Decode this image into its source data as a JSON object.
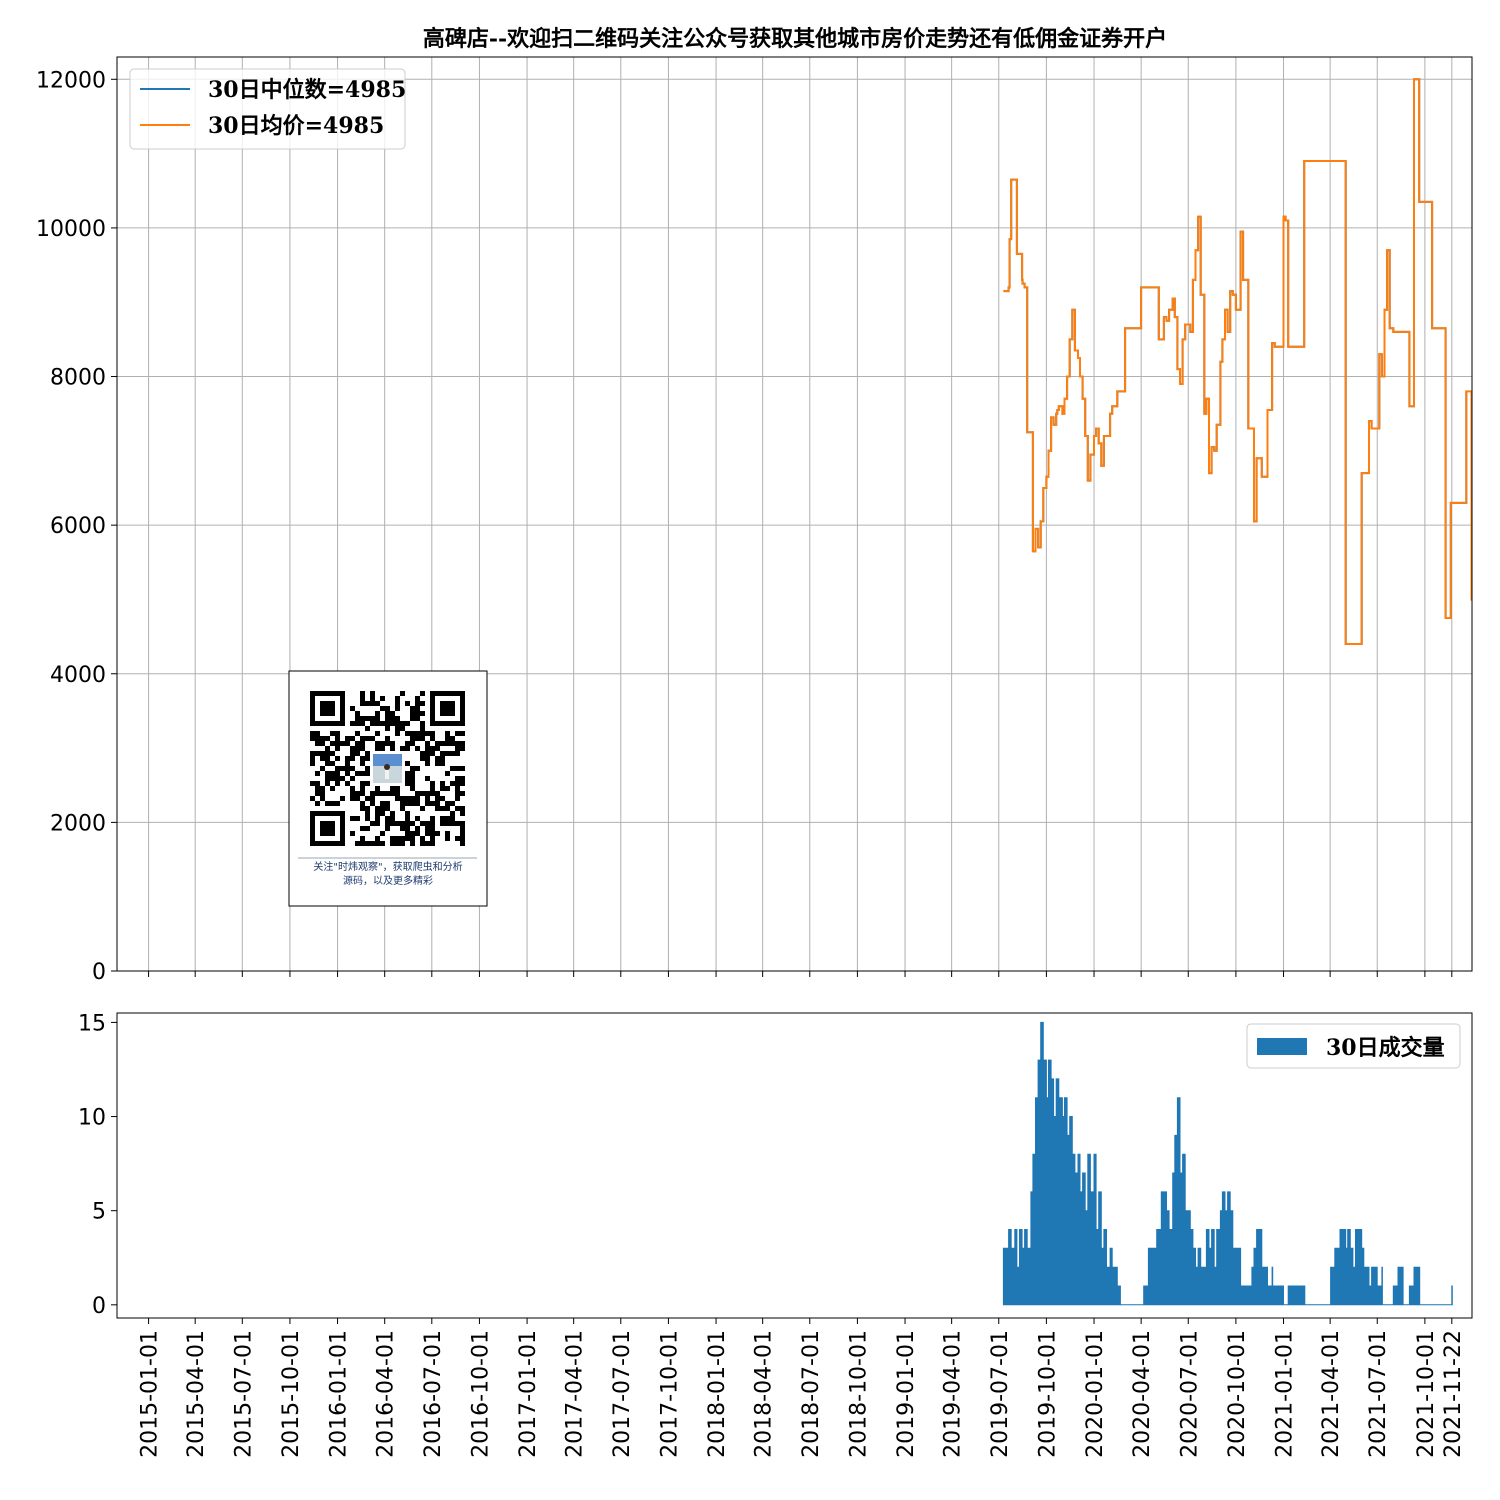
{
  "chart_data": [
    {
      "type": "line",
      "title": "高碑店--欢迎扫二维码关注公众号获取其他城市房价走势还有低佣金证券开户",
      "ylim": [
        0,
        12300
      ],
      "yticks": [
        0,
        2000,
        4000,
        6000,
        8000,
        10000,
        12000
      ],
      "x_range": [
        "2014-11-01",
        "2021-12-31"
      ],
      "grid": true,
      "legend_position": "top-left",
      "series": [
        {
          "name": "30日中位数=4985",
          "color": "#1f77b4",
          "x": [
            "2019-07-10",
            "2019-07-20",
            "2019-07-22",
            "2019-07-25",
            "2019-08-05",
            "2019-08-10",
            "2019-08-15",
            "2019-08-16",
            "2019-08-20",
            "2019-08-25",
            "2019-09-01",
            "2019-09-05",
            "2019-09-10",
            "2019-09-15",
            "2019-09-20",
            "2019-09-25",
            "2019-10-01",
            "2019-10-05",
            "2019-10-10",
            "2019-10-15",
            "2019-10-20",
            "2019-10-22",
            "2019-10-25",
            "2019-11-01",
            "2019-11-05",
            "2019-11-10",
            "2019-11-15",
            "2019-11-20",
            "2019-11-25",
            "2019-12-01",
            "2019-12-05",
            "2019-12-10",
            "2019-12-15",
            "2019-12-20",
            "2019-12-25",
            "2020-01-01",
            "2020-01-05",
            "2020-01-10",
            "2020-01-15",
            "2020-01-20",
            "2020-02-01",
            "2020-02-05",
            "2020-02-15",
            "2020-03-01",
            "2020-04-01",
            "2020-04-15",
            "2020-05-01",
            "2020-05-05",
            "2020-05-10",
            "2020-05-15",
            "2020-05-20",
            "2020-05-25",
            "2020-06-01",
            "2020-06-05",
            "2020-06-10",
            "2020-06-15",
            "2020-06-20",
            "2020-06-25",
            "2020-07-01",
            "2020-07-05",
            "2020-07-10",
            "2020-07-15",
            "2020-07-20",
            "2020-07-25",
            "2020-08-01",
            "2020-08-05",
            "2020-08-10",
            "2020-08-15",
            "2020-08-20",
            "2020-08-25",
            "2020-09-01",
            "2020-09-05",
            "2020-09-10",
            "2020-09-15",
            "2020-09-20",
            "2020-09-25",
            "2020-10-01",
            "2020-10-05",
            "2020-10-10",
            "2020-10-15",
            "2020-10-20",
            "2020-10-25",
            "2020-11-01",
            "2020-11-05",
            "2020-11-10",
            "2020-11-15",
            "2020-11-20",
            "2020-12-01",
            "2020-12-10",
            "2020-12-15",
            "2020-12-20",
            "2021-01-01",
            "2021-01-05",
            "2021-01-10",
            "2021-01-15",
            "2021-01-20",
            "2021-02-01",
            "2021-02-10",
            "2021-02-15",
            "2021-03-01",
            "2021-03-10",
            "2021-03-15",
            "2021-04-01",
            "2021-05-01",
            "2021-06-01",
            "2021-06-10",
            "2021-06-15",
            "2021-06-20",
            "2021-07-01",
            "2021-07-05",
            "2021-07-10",
            "2021-07-15",
            "2021-07-20",
            "2021-07-25",
            "2021-08-01",
            "2021-08-10",
            "2021-08-20",
            "2021-09-01",
            "2021-09-05",
            "2021-09-10",
            "2021-09-20",
            "2021-10-01",
            "2021-10-10",
            "2021-10-15",
            "2021-10-20",
            "2021-11-01",
            "2021-11-10",
            "2021-11-20",
            "2021-12-01",
            "2021-12-20"
          ],
          "y": [
            9150,
            9200,
            9850,
            10650,
            9650,
            9650,
            9300,
            9250,
            9200,
            7250,
            7250,
            5650,
            5950,
            5700,
            6050,
            6500,
            6650,
            7000,
            7450,
            7350,
            7500,
            7550,
            7600,
            7500,
            7700,
            8000,
            8500,
            8900,
            8350,
            8250,
            8000,
            7700,
            7200,
            6600,
            6950,
            7200,
            7300,
            7100,
            6800,
            7200,
            7500,
            7600,
            7800,
            8650,
            9200,
            9200,
            9200,
            8500,
            8500,
            8800,
            8750,
            8900,
            9050,
            8800,
            8100,
            7900,
            8500,
            8700,
            8700,
            8600,
            9300,
            9700,
            10150,
            9100,
            7500,
            7700,
            6700,
            7050,
            7000,
            7350,
            8200,
            8500,
            8900,
            8600,
            9150,
            9100,
            8900,
            8900,
            9950,
            9300,
            9300,
            7300,
            7300,
            6050,
            6900,
            6900,
            6650,
            7550,
            8450,
            8400,
            8400,
            10150,
            10100,
            8400,
            8400,
            8400,
            8400,
            10900,
            10900,
            10900,
            10900,
            10900,
            10900,
            4400,
            6700,
            6700,
            7400,
            7300,
            7300,
            8300,
            8000,
            8900,
            9700,
            8650,
            8600,
            8600,
            8600,
            7600,
            7600,
            12000,
            10350,
            10350,
            10350,
            8650,
            8650,
            8650,
            4750,
            6300,
            6300,
            7800
          ]
        },
        {
          "name": "30日均价=4985",
          "color": "#ff7f0e",
          "x": [
            "2019-07-10",
            "2019-07-20",
            "2019-07-22",
            "2019-07-25",
            "2019-08-05",
            "2019-08-10",
            "2019-08-15",
            "2019-08-16",
            "2019-08-20",
            "2019-08-25",
            "2019-09-01",
            "2019-09-05",
            "2019-09-10",
            "2019-09-15",
            "2019-09-20",
            "2019-09-25",
            "2019-10-01",
            "2019-10-05",
            "2019-10-10",
            "2019-10-15",
            "2019-10-20",
            "2019-10-22",
            "2019-10-25",
            "2019-11-01",
            "2019-11-05",
            "2019-11-10",
            "2019-11-15",
            "2019-11-20",
            "2019-11-25",
            "2019-12-01",
            "2019-12-05",
            "2019-12-10",
            "2019-12-15",
            "2019-12-20",
            "2019-12-25",
            "2020-01-01",
            "2020-01-05",
            "2020-01-10",
            "2020-01-15",
            "2020-01-20",
            "2020-02-01",
            "2020-02-05",
            "2020-02-15",
            "2020-03-01",
            "2020-04-01",
            "2020-04-15",
            "2020-05-01",
            "2020-05-05",
            "2020-05-10",
            "2020-05-15",
            "2020-05-20",
            "2020-05-25",
            "2020-06-01",
            "2020-06-05",
            "2020-06-10",
            "2020-06-15",
            "2020-06-20",
            "2020-06-25",
            "2020-07-01",
            "2020-07-05",
            "2020-07-10",
            "2020-07-15",
            "2020-07-20",
            "2020-07-25",
            "2020-08-01",
            "2020-08-05",
            "2020-08-10",
            "2020-08-15",
            "2020-08-20",
            "2020-08-25",
            "2020-09-01",
            "2020-09-05",
            "2020-09-10",
            "2020-09-15",
            "2020-09-20",
            "2020-09-25",
            "2020-10-01",
            "2020-10-05",
            "2020-10-10",
            "2020-10-15",
            "2020-10-20",
            "2020-10-25",
            "2020-11-01",
            "2020-11-05",
            "2020-11-10",
            "2020-11-15",
            "2020-11-20",
            "2020-12-01",
            "2020-12-10",
            "2020-12-15",
            "2020-12-20",
            "2021-01-01",
            "2021-01-05",
            "2021-01-10",
            "2021-01-15",
            "2021-01-20",
            "2021-02-01",
            "2021-02-10",
            "2021-02-15",
            "2021-03-01",
            "2021-03-10",
            "2021-03-15",
            "2021-04-01",
            "2021-05-01",
            "2021-06-01",
            "2021-06-10",
            "2021-06-15",
            "2021-06-20",
            "2021-07-01",
            "2021-07-05",
            "2021-07-10",
            "2021-07-15",
            "2021-07-20",
            "2021-07-25",
            "2021-08-01",
            "2021-08-10",
            "2021-08-20",
            "2021-09-01",
            "2021-09-05",
            "2021-09-10",
            "2021-09-20",
            "2021-10-01",
            "2021-10-10",
            "2021-10-15",
            "2021-10-20",
            "2021-11-01",
            "2021-11-10",
            "2021-11-20",
            "2021-12-01",
            "2021-12-20",
            "2021-12-30"
          ],
          "y": [
            9150,
            9200,
            9850,
            10650,
            9650,
            9650,
            9300,
            9250,
            9200,
            7250,
            7250,
            5650,
            5950,
            5700,
            6050,
            6500,
            6650,
            7000,
            7450,
            7350,
            7500,
            7550,
            7600,
            7500,
            7700,
            8000,
            8500,
            8900,
            8350,
            8250,
            8000,
            7700,
            7200,
            6600,
            6950,
            7200,
            7300,
            7100,
            6800,
            7200,
            7500,
            7600,
            7800,
            8650,
            9200,
            9200,
            9200,
            8500,
            8500,
            8800,
            8750,
            8900,
            9050,
            8800,
            8100,
            7900,
            8500,
            8700,
            8700,
            8600,
            9300,
            9700,
            10150,
            9100,
            7500,
            7700,
            6700,
            7050,
            7000,
            7350,
            8200,
            8500,
            8900,
            8600,
            9150,
            9100,
            8900,
            8900,
            9950,
            9300,
            9300,
            7300,
            7300,
            6050,
            6900,
            6900,
            6650,
            7550,
            8450,
            8400,
            8400,
            10150,
            10100,
            8400,
            8400,
            8400,
            8400,
            10900,
            10900,
            10900,
            10900,
            10900,
            10900,
            4400,
            6700,
            6700,
            7400,
            7300,
            7300,
            8300,
            8000,
            8900,
            9700,
            8650,
            8600,
            8600,
            8600,
            7600,
            7600,
            12000,
            10350,
            10350,
            10350,
            8650,
            8650,
            8650,
            4750,
            6300,
            6300,
            7800,
            4985
          ]
        }
      ]
    },
    {
      "type": "area",
      "ylim": [
        -0.7,
        15.5
      ],
      "yticks": [
        0,
        5,
        10,
        15
      ],
      "x_range": [
        "2014-11-01",
        "2021-12-31"
      ],
      "grid": false,
      "legend_position": "top-right",
      "xtick_labels": [
        "2015-01-01",
        "2015-04-01",
        "2015-07-01",
        "2015-10-01",
        "2016-01-01",
        "2016-04-01",
        "2016-07-01",
        "2016-10-01",
        "2017-01-01",
        "2017-04-01",
        "2017-07-01",
        "2017-10-01",
        "2018-01-01",
        "2018-04-01",
        "2018-07-01",
        "2018-10-01",
        "2019-01-01",
        "2019-04-01",
        "2019-07-01",
        "2019-10-01",
        "2020-01-01",
        "2020-04-01",
        "2020-07-01",
        "2020-10-01",
        "2021-01-01",
        "2021-04-01",
        "2021-07-01",
        "2021-10-01",
        "2021-11-22"
      ],
      "series": [
        {
          "name": "30日成交量",
          "color": "#1f77b4",
          "x": [
            "2019-07-09",
            "2019-07-10",
            "2019-07-15",
            "2019-07-20",
            "2019-07-25",
            "2019-08-01",
            "2019-08-05",
            "2019-08-10",
            "2019-08-15",
            "2019-08-20",
            "2019-08-25",
            "2019-09-01",
            "2019-09-05",
            "2019-09-10",
            "2019-09-15",
            "2019-09-20",
            "2019-09-25",
            "2019-10-01",
            "2019-10-05",
            "2019-10-10",
            "2019-10-15",
            "2019-10-20",
            "2019-10-25",
            "2019-11-01",
            "2019-11-05",
            "2019-11-10",
            "2019-11-15",
            "2019-11-20",
            "2019-11-25",
            "2019-12-01",
            "2019-12-05",
            "2019-12-10",
            "2019-12-15",
            "2019-12-20",
            "2019-12-25",
            "2020-01-01",
            "2020-01-05",
            "2020-01-10",
            "2020-01-15",
            "2020-01-20",
            "2020-01-25",
            "2020-02-01",
            "2020-02-05",
            "2020-02-10",
            "2020-02-15",
            "2020-02-20",
            "2020-02-21",
            "2020-04-05",
            "2020-04-06",
            "2020-04-15",
            "2020-04-25",
            "2020-05-01",
            "2020-05-10",
            "2020-05-20",
            "2020-05-25",
            "2020-06-01",
            "2020-06-05",
            "2020-06-10",
            "2020-06-15",
            "2020-06-20",
            "2020-06-25",
            "2020-07-01",
            "2020-07-05",
            "2020-07-10",
            "2020-07-15",
            "2020-07-20",
            "2020-07-25",
            "2020-08-01",
            "2020-08-05",
            "2020-08-10",
            "2020-08-15",
            "2020-08-20",
            "2020-08-25",
            "2020-09-01",
            "2020-09-05",
            "2020-09-10",
            "2020-09-15",
            "2020-09-20",
            "2020-09-25",
            "2020-10-01",
            "2020-10-10",
            "2020-10-20",
            "2020-11-01",
            "2020-11-05",
            "2020-11-10",
            "2020-11-20",
            "2020-12-01",
            "2020-12-10",
            "2020-12-11",
            "2020-12-20",
            "2021-01-01",
            "2021-01-10",
            "2021-01-20",
            "2021-02-01",
            "2021-02-10",
            "2021-02-11",
            "2021-04-01",
            "2021-04-02",
            "2021-04-10",
            "2021-04-20",
            "2021-05-01",
            "2021-05-05",
            "2021-05-10",
            "2021-05-15",
            "2021-05-20",
            "2021-06-01",
            "2021-06-05",
            "2021-06-10",
            "2021-06-15",
            "2021-06-20",
            "2021-07-01",
            "2021-07-10",
            "2021-07-11",
            "2021-07-20",
            "2021-08-01",
            "2021-08-10",
            "2021-08-11",
            "2021-08-20",
            "2021-09-01",
            "2021-09-10",
            "2021-09-20",
            "2021-09-21",
            "2021-11-22",
            "2021-11-23"
          ],
          "y": [
            0,
            3,
            3,
            4,
            3,
            4,
            2,
            4,
            3,
            4,
            3,
            6,
            8,
            11,
            13,
            15,
            13,
            11,
            13,
            12,
            10,
            12,
            11,
            10,
            11,
            9,
            10,
            8,
            7,
            8,
            6,
            7,
            5,
            8,
            6,
            8,
            4,
            6,
            3,
            4,
            2,
            3,
            2,
            2,
            1,
            1,
            0,
            0,
            1,
            3,
            3,
            4,
            6,
            5,
            4,
            7,
            9,
            11,
            7,
            8,
            5,
            5,
            4,
            3,
            2,
            3,
            2,
            2,
            4,
            3,
            4,
            2,
            4,
            5,
            6,
            5,
            6,
            5,
            3,
            3,
            1,
            1,
            2,
            3,
            4,
            2,
            1,
            2,
            1,
            1,
            0,
            1,
            1,
            1,
            1,
            0,
            0,
            2,
            3,
            4,
            3,
            4,
            3,
            2,
            4,
            3,
            2,
            2,
            1,
            2,
            1,
            2,
            0,
            0,
            1,
            2,
            2,
            0,
            1,
            2,
            2,
            0,
            1,
            0
          ]
        }
      ]
    }
  ],
  "qr_box": {
    "caption_line1": "关注\"时炜观察\"，获取爬虫和分析",
    "caption_line2": "源码，以及更多精彩"
  }
}
